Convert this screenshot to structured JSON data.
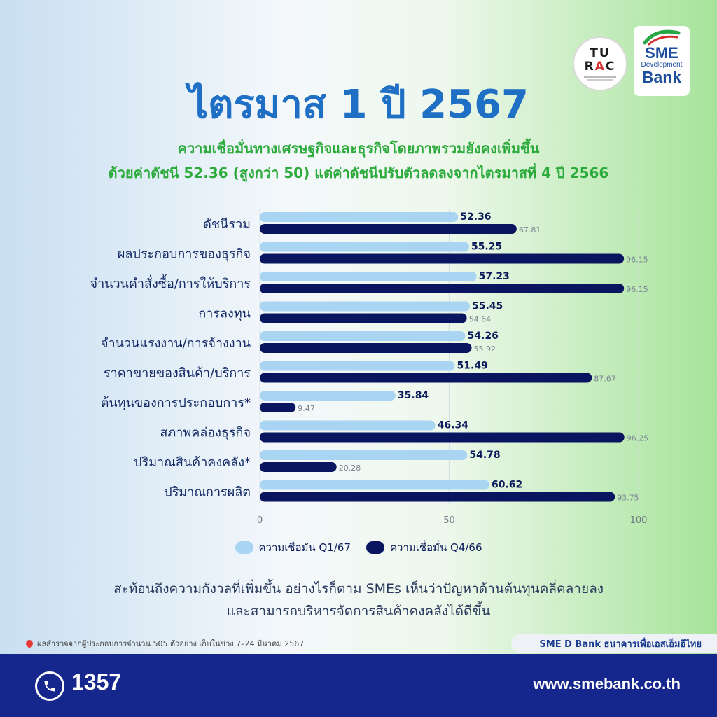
{
  "logos": {
    "turac_line1": "TU",
    "turac_line2a": "R",
    "turac_line2b": "A",
    "turac_line2c": "C",
    "sme_line1": "SME",
    "sme_line2": "Development",
    "sme_line3": "Bank"
  },
  "header": {
    "title": "ไตรมาส 1 ปี 2567",
    "subtitle_line1": "ความเชื่อมั่นทางเศรษฐกิจและธุรกิจโดยภาพรวมยังคงเพิ่มขึ้น",
    "subtitle_line2": "ด้วยค่าดัชนี 52.36 (สูงกว่า 50) แต่ค่าดัชนีปรับตัวลดลงจากไตรมาสที่ 4 ปี 2566"
  },
  "chart_data": {
    "type": "bar",
    "orientation": "horizontal",
    "categories": [
      "ดัชนีรวม",
      "ผลประกอบการของธุรกิจ",
      "จำนวนคำสั่งซื้อ/การให้บริการ",
      "การลงทุน",
      "จำนวนแรงงาน/การจ้างงาน",
      "ราคาขายของสินค้า/บริการ",
      "ต้นทุนของการประกอบการ*",
      "สภาพคล่องธุรกิจ",
      "ปริมาณสินค้าคงคลัง*",
      "ปริมาณการผลิต"
    ],
    "series": [
      {
        "name": "ความเชื่อมั่น Q1/67",
        "color": "#a9d5f3",
        "values": [
          52.36,
          55.25,
          57.23,
          55.45,
          54.26,
          51.49,
          35.84,
          46.34,
          54.78,
          60.62
        ],
        "labels": [
          "52.36",
          "55.25",
          "57.23",
          "55.45",
          "54.26",
          "51.49",
          "35.84",
          "46.34",
          "54.78",
          "60.62"
        ]
      },
      {
        "name": "ความเชื่อมั่น Q4/66",
        "color": "#0a1560",
        "values": [
          67.81,
          96.15,
          96.15,
          54.64,
          55.92,
          87.67,
          9.47,
          96.25,
          20.28,
          93.75
        ],
        "labels": [
          "67.81",
          "96.15",
          "96.15",
          "54.64",
          "55.92",
          "87.67",
          "9.47",
          "96.25",
          "20.28",
          "93.75"
        ]
      }
    ],
    "xlim": [
      0,
      100
    ],
    "x_ticks": [
      "0",
      "50",
      "100"
    ],
    "grid": true,
    "legend_position": "bottom-center"
  },
  "legend": {
    "q1": "ความเชื่อมั่น Q1/67",
    "q4": "ความเชื่อมั่น Q4/66"
  },
  "note": {
    "line1": "สะท้อนถึงความกังวลที่เพิ่มขึ้น อย่างไรก็ตาม SMEs เห็นว่าปัญหาด้านต้นทุนคลี่คลายลง",
    "line2": "และสามารถบริหารจัดการสินค้าคงคลังได้ดีขึ้น"
  },
  "footer": {
    "source": "ผลสำรวจจากผู้ประกอบการจำนวน 505 ตัวอย่าง เก็บในช่วง 7–24 มีนาคม 2567",
    "bank_tag": "SME D Bank ธนาคารเพื่อเอสเอ็มอีไทย",
    "phone": "1357",
    "website": "www.smebank.co.th"
  },
  "colors": {
    "title": "#1f6fc5",
    "subtitle": "#2caa3c",
    "footer_bg": "#15268c"
  }
}
